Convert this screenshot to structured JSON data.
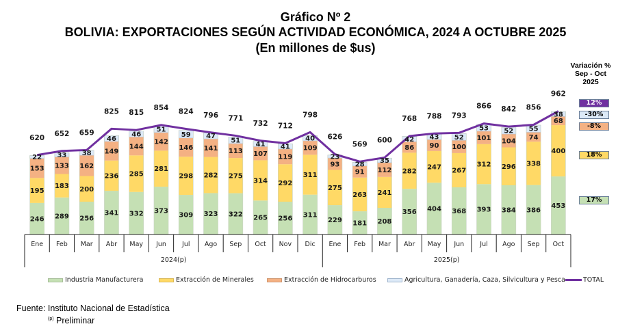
{
  "titles": {
    "line1": "Gráfico Nº 2",
    "line2": "BOLIVIA: EXPORTACIONES SEGÚN ACTIVIDAD ECONÓMICA, 2024 A OCTUBRE 2025",
    "line3": "(En millones de $us)"
  },
  "variation_panel": {
    "heading_line1": "Variación %",
    "heading_line2": "Sep - Oct",
    "heading_line3": "2025",
    "items": [
      {
        "series": "TOTAL",
        "value": "12%",
        "color": "#7030a0",
        "text_color": "#ffffff"
      },
      {
        "series": "Agricultura, Ganadería, Caza, Silvicultura y Pesca",
        "value": "-30%",
        "color": "#dce9f7",
        "text_color": "#000000"
      },
      {
        "series": "Extracción de Hidrocarburos",
        "value": "-8%",
        "color": "#f4b183",
        "text_color": "#000000"
      },
      {
        "series": "Extracción de Minerales",
        "value": "18%",
        "color": "#ffd966",
        "text_color": "#000000"
      },
      {
        "series": "Industria Manufacturera",
        "value": "17%",
        "color": "#c5e0b4",
        "text_color": "#000000"
      }
    ]
  },
  "legend": [
    {
      "label": "Industria Manufacturera",
      "type": "bar",
      "color": "#c5e0b4"
    },
    {
      "label": "Extracción de Minerales",
      "type": "bar",
      "color": "#ffd966"
    },
    {
      "label": "Extracción de Hidrocarburos",
      "type": "bar",
      "color": "#f4b183"
    },
    {
      "label": "Agricultura, Ganadería, Caza, Silvicultura y Pesca",
      "type": "bar",
      "color": "#dce9f7"
    },
    {
      "label": "TOTAL",
      "type": "line",
      "color": "#7030a0"
    }
  ],
  "source": {
    "text": "Fuente: Instituto Nacional de Estadística",
    "note_marker": "(p)",
    "note_text": "Preliminar"
  },
  "chart_data": {
    "type": "bar",
    "stacked": true,
    "title": "BOLIVIA: EXPORTACIONES SEGÚN ACTIVIDAD ECONÓMICA, 2024 A OCTUBRE 2025",
    "subtitle": "(En millones de $us)",
    "xlabel": "",
    "ylabel": "",
    "ylim": [
      0,
      1000
    ],
    "grid": false,
    "legend_position": "bottom",
    "categories": [
      "Ene",
      "Feb",
      "Mar",
      "Abr",
      "May",
      "Jun",
      "Jul",
      "Ago",
      "Sep",
      "Oct",
      "Nov",
      "Dic",
      "Ene",
      "Feb",
      "Mar",
      "Abr",
      "May",
      "Jun",
      "Jul",
      "Ago",
      "Sep",
      "Oct"
    ],
    "groups": [
      {
        "label": "2024(p)",
        "count": 12
      },
      {
        "label": "2025(p)",
        "count": 10
      }
    ],
    "series": [
      {
        "name": "Industria Manufacturera",
        "color": "#c5e0b4",
        "values": [
          246,
          289,
          256,
          341,
          332,
          373,
          309,
          323,
          322,
          265,
          256,
          311,
          229,
          181,
          208,
          356,
          404,
          368,
          393,
          384,
          386,
          453
        ]
      },
      {
        "name": "Extracción de Minerales",
        "color": "#ffd966",
        "values": [
          195,
          183,
          200,
          236,
          285,
          281,
          298,
          282,
          275,
          314,
          292,
          311,
          275,
          263,
          241,
          282,
          247,
          267,
          312,
          296,
          338,
          400
        ]
      },
      {
        "name": "Extracción de Hidrocarburos",
        "color": "#f4b183",
        "values": [
          153,
          133,
          162,
          149,
          144,
          142,
          146,
          141,
          113,
          107,
          119,
          109,
          93,
          91,
          112,
          86,
          90,
          100,
          101,
          104,
          74,
          68
        ]
      },
      {
        "name": "Agricultura, Ganadería, Caza, Silvicultura y Pesca",
        "color": "#dce9f7",
        "values": [
          22,
          33,
          38,
          46,
          46,
          51,
          59,
          47,
          51,
          41,
          41,
          40,
          23,
          28,
          35,
          42,
          43,
          52,
          53,
          52,
          55,
          38
        ]
      }
    ],
    "line_series": {
      "name": "TOTAL",
      "color": "#7030a0",
      "values": [
        620,
        652,
        659,
        825,
        815,
        854,
        824,
        796,
        771,
        732,
        712,
        798,
        626,
        569,
        600,
        768,
        788,
        793,
        866,
        842,
        856,
        962
      ]
    }
  }
}
